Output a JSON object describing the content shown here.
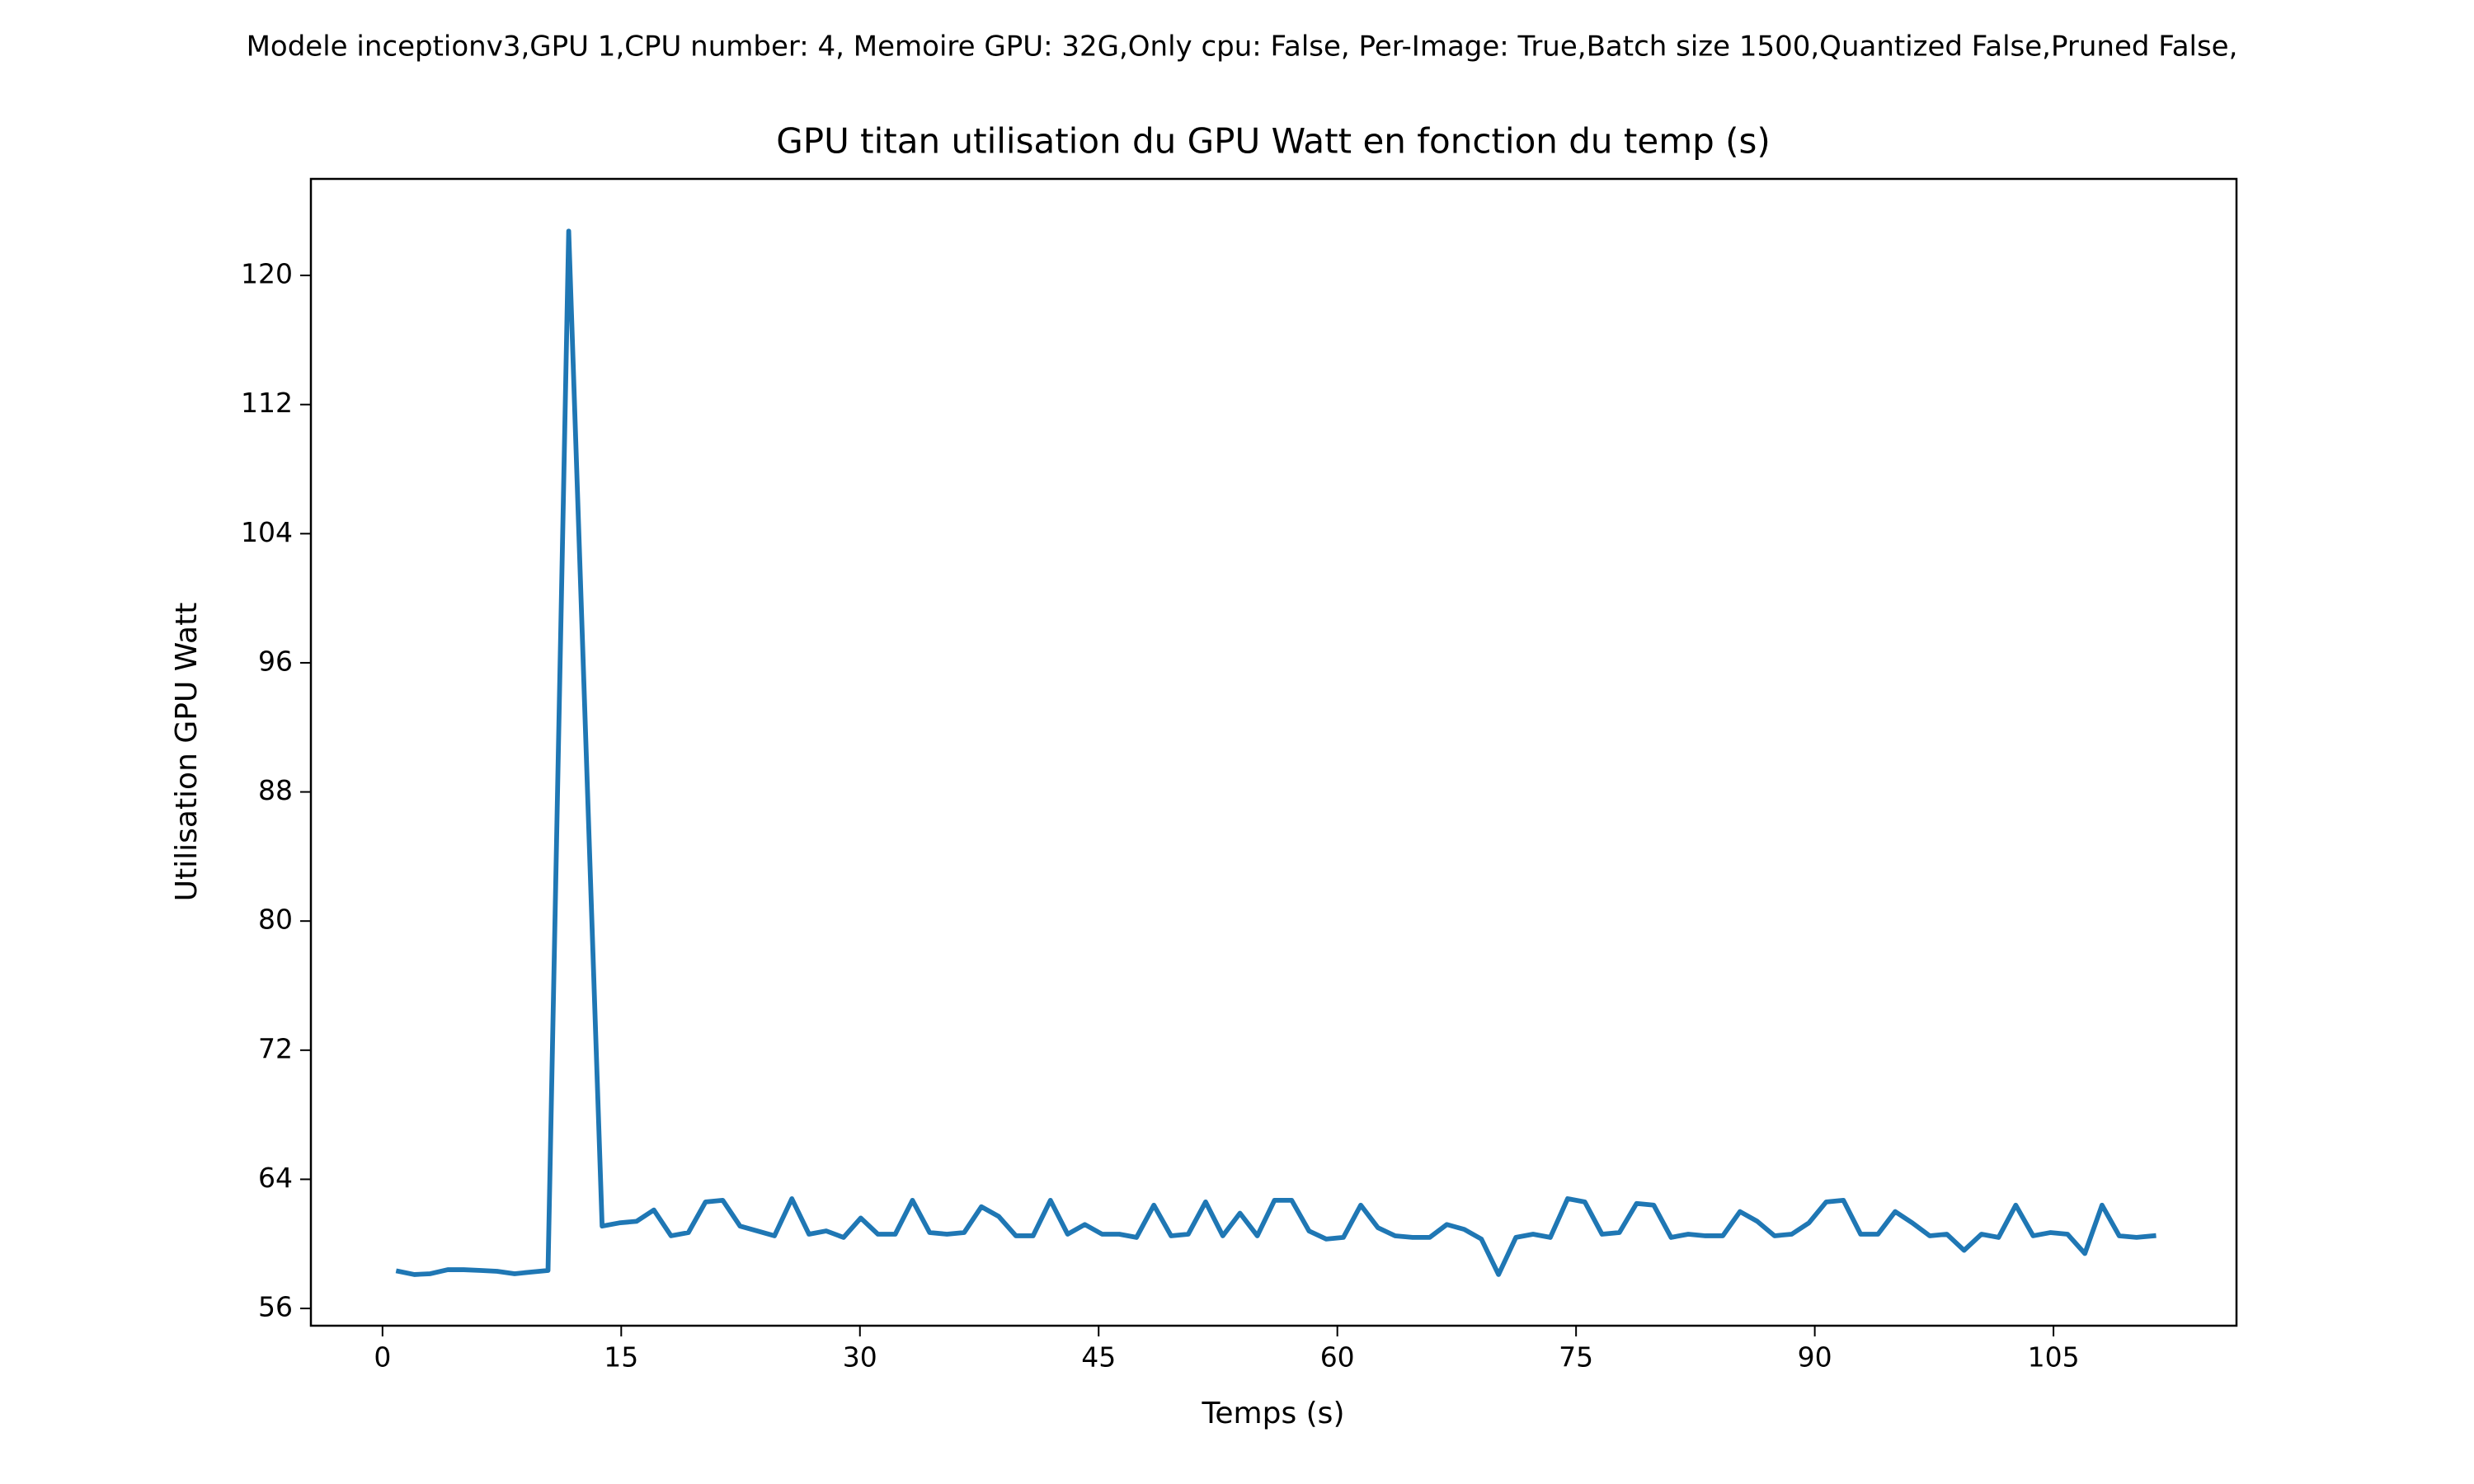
{
  "chart_data": {
    "type": "line",
    "suptitle": "Modele inceptionv3,GPU 1,CPU number: 4, Memoire GPU: 32G,Only cpu: False, Per-Image: True,Batch size 1500,Quantized False,Pruned False,",
    "title": "GPU titan utilisation du GPU Watt en fonction du temp (s)",
    "x_label": "Temps (s)",
    "y_label": "Utilisation GPU Watt",
    "xlim": [
      -4.5,
      116.5
    ],
    "xticks": [
      0,
      15,
      30,
      45,
      60,
      75,
      90,
      105
    ],
    "ylim": [
      54.93,
      125.98
    ],
    "yticks": [
      56,
      64,
      72,
      80,
      88,
      96,
      104,
      112,
      120
    ],
    "grid": false,
    "series": [
      {
        "color": "#1f77b4",
        "x": [
          1.0,
          2.0,
          3.0,
          4.1,
          5.1,
          6.2,
          7.2,
          8.3,
          9.3,
          10.4,
          11.7,
          13.8,
          14.88,
          15.97,
          17.05,
          18.13,
          19.22,
          20.3,
          21.38,
          22.47,
          23.55,
          24.63,
          25.72,
          26.8,
          27.88,
          28.97,
          30.05,
          31.13,
          32.22,
          33.3,
          34.38,
          35.47,
          36.55,
          37.63,
          38.72,
          39.8,
          40.88,
          41.97,
          43.05,
          44.13,
          45.22,
          46.3,
          47.38,
          48.47,
          49.55,
          50.63,
          51.72,
          52.8,
          53.88,
          54.97,
          56.05,
          57.13,
          58.22,
          59.3,
          60.38,
          61.47,
          62.55,
          63.63,
          64.72,
          65.8,
          66.88,
          67.97,
          69.05,
          70.13,
          71.22,
          72.3,
          73.38,
          74.47,
          75.55,
          76.63,
          77.72,
          78.8,
          79.88,
          80.97,
          82.05,
          83.13,
          84.22,
          85.3,
          86.38,
          87.47,
          88.55,
          89.63,
          90.72,
          91.8,
          92.88,
          93.97,
          95.05,
          96.13,
          97.22,
          98.3,
          99.38,
          100.47,
          101.55,
          102.63,
          103.72,
          104.8,
          105.88,
          106.97,
          108.05,
          109.13,
          110.22,
          111.3
        ],
        "values": [
          58.3,
          58.1,
          58.15,
          58.4,
          58.4,
          58.35,
          58.3,
          58.15,
          58.25,
          58.35,
          122.75,
          61.1,
          61.3,
          61.4,
          62.1,
          60.5,
          60.7,
          62.6,
          62.7,
          61.1,
          60.8,
          60.5,
          62.8,
          60.6,
          60.8,
          60.4,
          61.6,
          60.6,
          60.6,
          62.7,
          60.7,
          60.6,
          60.7,
          62.3,
          61.7,
          60.5,
          60.5,
          62.7,
          60.6,
          61.2,
          60.6,
          60.6,
          60.4,
          62.4,
          60.5,
          60.6,
          62.6,
          60.5,
          61.9,
          60.5,
          62.7,
          62.7,
          60.8,
          60.3,
          60.4,
          62.4,
          61.0,
          60.5,
          60.4,
          60.4,
          61.2,
          60.9,
          60.3,
          58.1,
          60.4,
          60.6,
          60.4,
          62.8,
          62.6,
          60.6,
          60.7,
          62.5,
          62.4,
          60.4,
          60.6,
          60.5,
          60.5,
          62.0,
          61.4,
          60.5,
          60.6,
          61.3,
          62.6,
          62.7,
          60.6,
          60.6,
          62.0,
          61.3,
          60.5,
          60.6,
          59.6,
          60.6,
          60.4,
          62.4,
          60.5,
          60.7,
          60.6,
          59.4,
          62.4,
          60.5,
          60.4,
          60.5
        ]
      }
    ]
  }
}
